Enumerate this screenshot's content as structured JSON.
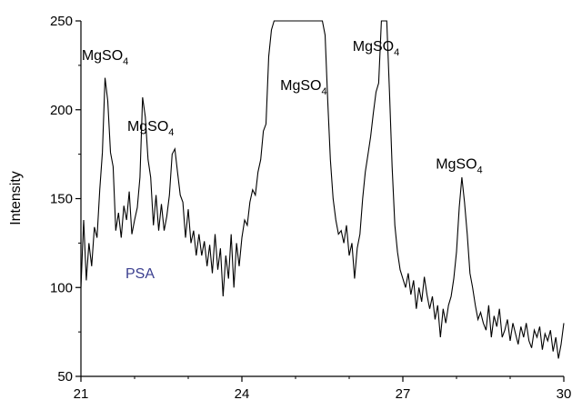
{
  "chart_data": {
    "type": "line",
    "title": "",
    "xlabel": "",
    "ylabel": "Intensity",
    "xlim": [
      21,
      30
    ],
    "ylim": [
      50,
      250
    ],
    "x_ticks": [
      21,
      24,
      27,
      30
    ],
    "y_ticks": [
      50,
      100,
      150,
      200,
      250
    ],
    "grid": false,
    "line_color": "#000000",
    "sample_label": {
      "text": "PSA",
      "color": "#3b3f8f"
    },
    "annotations": [
      {
        "base": "MgSO",
        "sub": "4",
        "x": 21.45,
        "y": 228
      },
      {
        "base": "MgSO",
        "sub": "4",
        "x": 22.3,
        "y": 188
      },
      {
        "base": "MgSO",
        "sub": "4",
        "x": 25.15,
        "y": 211
      },
      {
        "base": "MgSO",
        "sub": "4",
        "x": 26.5,
        "y": 233
      },
      {
        "base": "MgSO",
        "sub": "4",
        "x": 28.05,
        "y": 167
      }
    ],
    "series": [
      {
        "x": [
          21.0,
          21.05,
          21.1,
          21.15,
          21.2,
          21.25,
          21.3,
          21.35,
          21.4,
          21.45,
          21.5,
          21.55,
          21.6,
          21.65,
          21.7,
          21.75,
          21.8,
          21.85,
          21.9,
          21.95,
          22.0,
          22.05,
          22.1,
          22.15,
          22.2,
          22.25,
          22.3,
          22.35,
          22.4,
          22.45,
          22.5,
          22.55,
          22.6,
          22.65,
          22.7,
          22.75,
          22.8,
          22.85,
          22.9,
          22.95,
          23.0,
          23.05,
          23.1,
          23.15,
          23.2,
          23.25,
          23.3,
          23.35,
          23.4,
          23.45,
          23.5,
          23.55,
          23.6,
          23.65,
          23.7,
          23.75,
          23.8,
          23.85,
          23.9,
          23.95,
          24.0,
          24.05,
          24.1,
          24.15,
          24.2,
          24.25,
          24.3,
          24.35,
          24.4,
          24.45,
          24.5,
          24.55,
          24.6,
          25.5,
          25.55,
          25.6,
          25.65,
          25.7,
          25.75,
          25.8,
          25.85,
          25.9,
          25.95,
          26.0,
          26.05,
          26.1,
          26.15,
          26.2,
          26.25,
          26.3,
          26.35,
          26.4,
          26.45,
          26.5,
          26.55,
          26.6,
          26.7,
          26.75,
          26.8,
          26.85,
          26.9,
          26.95,
          27.0,
          27.05,
          27.1,
          27.15,
          27.2,
          27.25,
          27.3,
          27.35,
          27.4,
          27.45,
          27.5,
          27.55,
          27.6,
          27.65,
          27.7,
          27.75,
          27.8,
          27.85,
          27.9,
          27.95,
          28.0,
          28.05,
          28.1,
          28.15,
          28.2,
          28.25,
          28.3,
          28.35,
          28.4,
          28.45,
          28.5,
          28.55,
          28.6,
          28.65,
          28.7,
          28.75,
          28.8,
          28.85,
          28.9,
          28.95,
          29.0,
          29.05,
          29.1,
          29.15,
          29.2,
          29.25,
          29.3,
          29.35,
          29.4,
          29.45,
          29.5,
          29.55,
          29.6,
          29.65,
          29.7,
          29.75,
          29.8,
          29.85,
          29.9,
          29.95,
          30.0
        ],
        "y": [
          100,
          138,
          104,
          125,
          112,
          134,
          128,
          155,
          176,
          218,
          205,
          176,
          168,
          132,
          142,
          128,
          146,
          138,
          154,
          130,
          138,
          145,
          162,
          207,
          196,
          172,
          162,
          135,
          152,
          132,
          147,
          132,
          140,
          152,
          175,
          178,
          165,
          152,
          148,
          128,
          144,
          125,
          132,
          118,
          130,
          118,
          126,
          112,
          124,
          108,
          130,
          110,
          122,
          95,
          118,
          105,
          130,
          100,
          125,
          112,
          128,
          138,
          135,
          148,
          155,
          152,
          165,
          172,
          188,
          192,
          230,
          245,
          250,
          250,
          242,
          205,
          172,
          150,
          138,
          130,
          132,
          125,
          135,
          118,
          125,
          105,
          122,
          130,
          150,
          165,
          175,
          185,
          198,
          210,
          215,
          250,
          250,
          210,
          168,
          135,
          120,
          110,
          105,
          100,
          108,
          96,
          104,
          88,
          100,
          92,
          106,
          96,
          88,
          95,
          82,
          90,
          72,
          88,
          80,
          90,
          95,
          105,
          120,
          145,
          162,
          148,
          130,
          108,
          100,
          90,
          82,
          86,
          80,
          76,
          90,
          72,
          84,
          78,
          88,
          72,
          76,
          82,
          70,
          80,
          74,
          68,
          78,
          72,
          80,
          70,
          66,
          76,
          72,
          78,
          65,
          74,
          70,
          76,
          64,
          72,
          60,
          68,
          80
        ]
      }
    ]
  }
}
